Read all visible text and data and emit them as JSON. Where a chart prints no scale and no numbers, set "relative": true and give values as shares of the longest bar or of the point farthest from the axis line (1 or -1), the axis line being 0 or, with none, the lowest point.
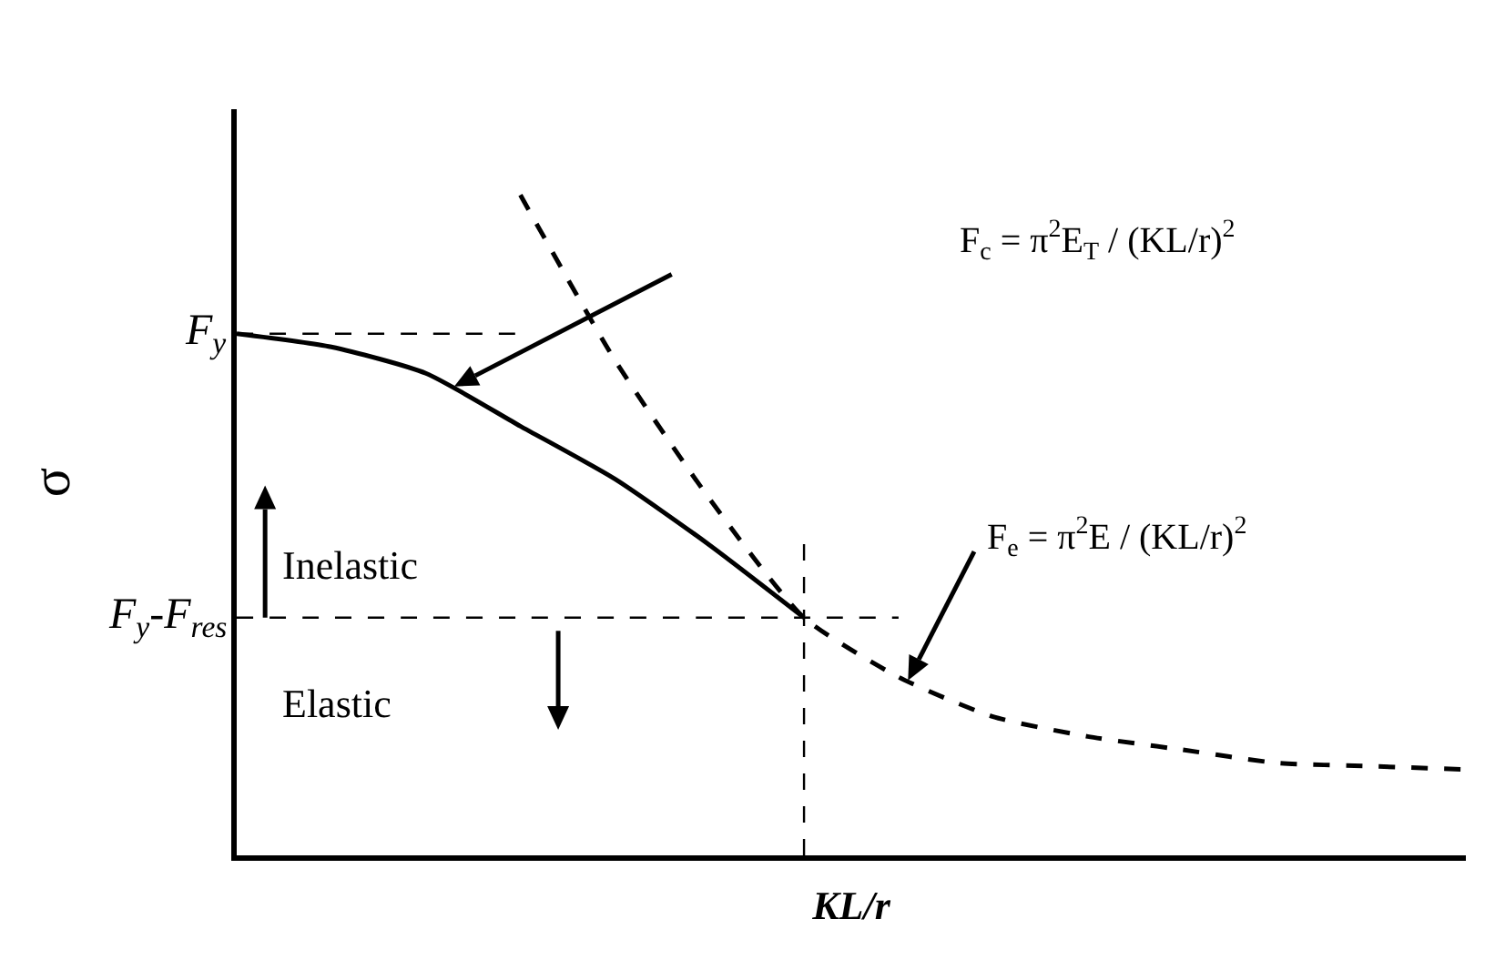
{
  "chart_data": {
    "type": "line",
    "relative": true,
    "xlabel": "KL/r",
    "ylabel": "σ",
    "categories": [
      null,
      null,
      null,
      null,
      null,
      null,
      null,
      null,
      null,
      null,
      null,
      null,
      null,
      null
    ],
    "series": [
      {
        "color": "#000000",
        "line_style": "dashed",
        "values": [
          null,
          null,
          null,
          1,
          0.75,
          0.54,
          0.36,
          0.27,
          0.21,
          0.18,
          0.16,
          0.14,
          0.135,
          0.13
        ]
      },
      {
        "color": "#000000",
        "line_style": "solid",
        "values": [
          0.79,
          0.77,
          0.73,
          0.65,
          0.57,
          0.47,
          0.36,
          null,
          null,
          null,
          null,
          null,
          null,
          null
        ]
      },
      {
        "color": "#000000",
        "line_style": "dashed",
        "values": [
          0.79,
          0.79,
          0.79,
          0.79,
          null,
          null,
          null,
          null,
          null,
          null,
          null,
          null,
          null,
          null
        ]
      },
      {
        "color": "#000000",
        "line_style": "dashed",
        "values": [
          0.36,
          0.36,
          0.36,
          0.36,
          0.36,
          0.36,
          0.36,
          0.36,
          null,
          null,
          null,
          null,
          null,
          null
        ]
      }
    ],
    "annotations": [
      "F$_{y}$",
      "F$_{y}$-F$_{res}$",
      "Inelastic",
      "Elastic",
      "F$_{c}$ = π$^{2}$E$_{T}$ / (KL/r)$^{2}$",
      "F$_{e}$ = π$^{2}$E / (KL/r)$^{2}$"
    ]
  }
}
